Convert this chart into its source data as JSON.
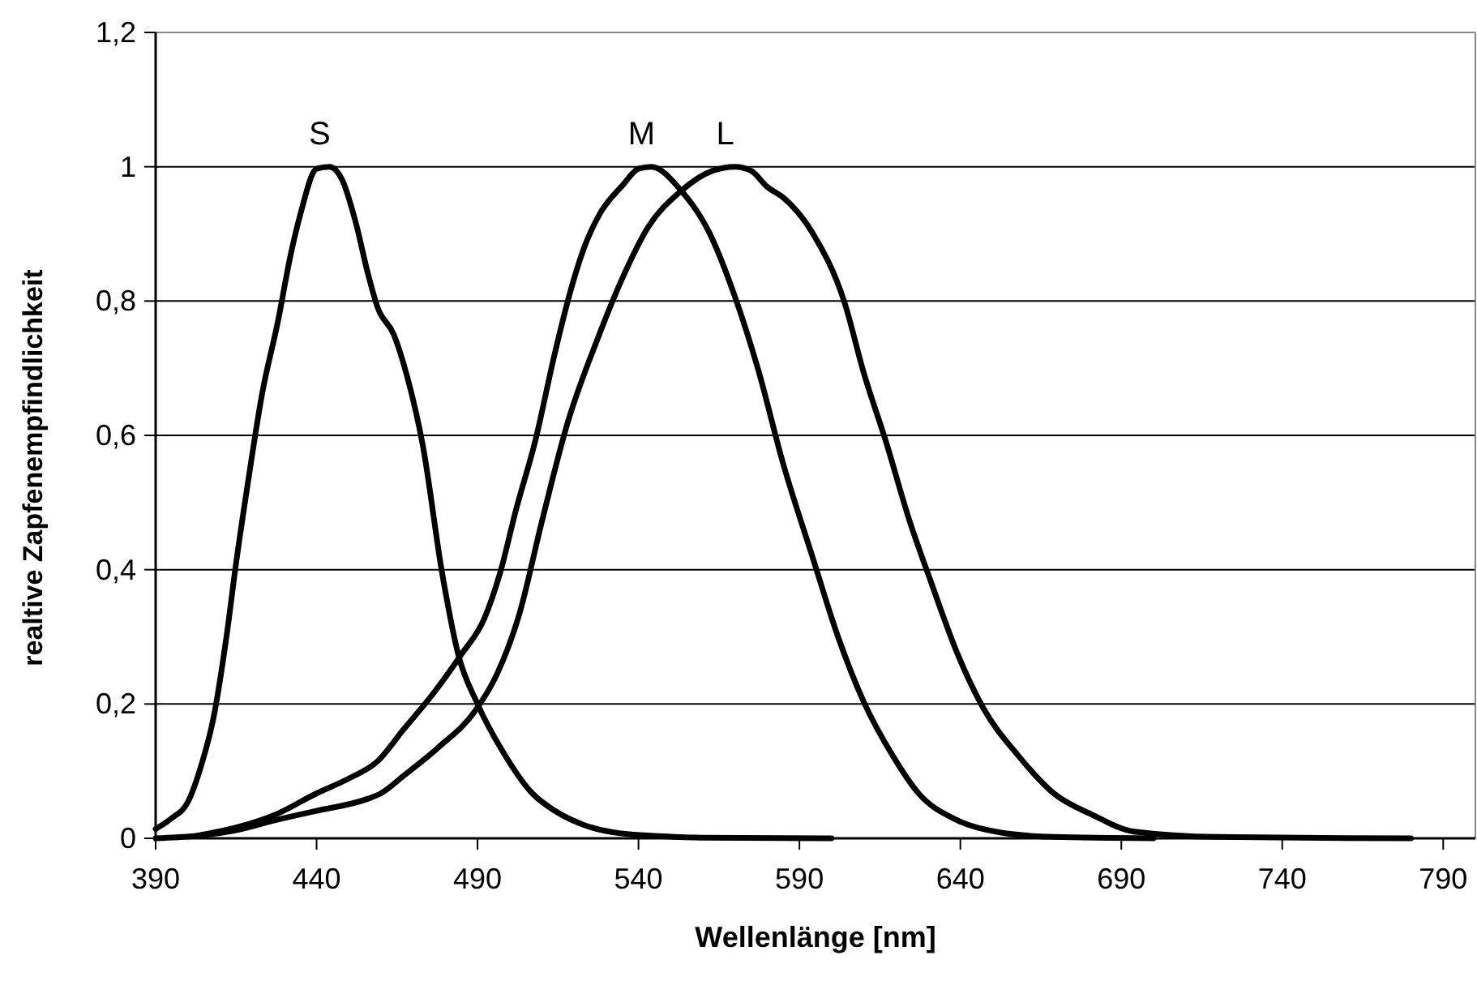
{
  "chart_data": {
    "type": "line",
    "xlabel": "Wellenlänge [nm]",
    "ylabel": "realtive Zapfenempfindlichkeit",
    "xlim": [
      390,
      800
    ],
    "ylim": [
      0,
      1.2
    ],
    "xticks": [
      390,
      440,
      490,
      540,
      590,
      640,
      690,
      740,
      790
    ],
    "yticks": [
      0,
      {
        "value": 0.2,
        "label": "0,2"
      },
      {
        "value": 0.4,
        "label": "0,4"
      },
      {
        "value": 0.6,
        "label": "0,6"
      },
      {
        "value": 0.8,
        "label": "0,8"
      },
      1,
      {
        "value": 1.2,
        "label": "1,2"
      }
    ],
    "grid": "y",
    "marker": "none",
    "line_style": "solid",
    "series": [
      {
        "name": "S",
        "color": "#000000",
        "x": [
          390,
          395,
          400,
          404,
          408,
          412,
          415,
          419,
          423,
          428,
          432,
          435,
          440,
          444,
          448,
          452,
          456,
          459,
          464,
          468,
          473,
          479,
          484,
          490,
          498,
          507,
          514,
          523,
          532,
          548,
          560,
          600
        ],
        "values": [
          0.014,
          0.03,
          0.054,
          0.106,
          0.18,
          0.3,
          0.41,
          0.54,
          0.66,
          0.77,
          0.87,
          0.93,
          0.997,
          1,
          0.98,
          0.92,
          0.84,
          0.79,
          0.75,
          0.69,
          0.585,
          0.395,
          0.274,
          0.2,
          0.128,
          0.067,
          0.041,
          0.02,
          0.009,
          0.003,
          0.001,
          0
        ]
      },
      {
        "name": "M",
        "color": "#000000",
        "x": [
          403,
          415,
          428,
          440,
          450,
          459,
          467,
          476,
          485,
          492,
          497,
          502,
          508,
          514,
          519,
          523,
          528,
          535,
          540,
          544,
          553,
          562,
          570,
          577,
          585,
          594,
          602,
          610,
          619,
          627,
          639,
          652,
          669,
          700
        ],
        "values": [
          0.004,
          0.016,
          0.037,
          0.067,
          0.089,
          0.115,
          0.162,
          0.214,
          0.274,
          0.326,
          0.395,
          0.49,
          0.593,
          0.722,
          0.817,
          0.878,
          0.93,
          0.972,
          0.997,
          1,
          0.966,
          0.902,
          0.806,
          0.701,
          0.557,
          0.42,
          0.3,
          0.203,
          0.123,
          0.067,
          0.027,
          0.009,
          0.002,
          0
        ]
      },
      {
        "name": "L",
        "color": "#000000",
        "x": [
          390,
          414,
          428,
          440,
          456,
          460,
          467,
          478,
          489,
          496,
          503,
          510,
          518,
          527,
          535,
          543,
          553,
          563,
          570,
          575,
          580,
          585,
          594,
          604,
          610,
          617,
          624,
          631,
          639,
          647,
          658,
          669,
          681,
          694,
          720,
          780
        ],
        "values": [
          0,
          0.011,
          0.028,
          0.041,
          0.059,
          0.067,
          0.093,
          0.136,
          0.188,
          0.244,
          0.334,
          0.472,
          0.619,
          0.74,
          0.834,
          0.91,
          0.963,
          0.994,
          1,
          0.994,
          0.97,
          0.954,
          0.902,
          0.798,
          0.693,
          0.589,
          0.476,
          0.38,
          0.276,
          0.195,
          0.123,
          0.067,
          0.035,
          0.01,
          0.002,
          0
        ]
      }
    ]
  }
}
